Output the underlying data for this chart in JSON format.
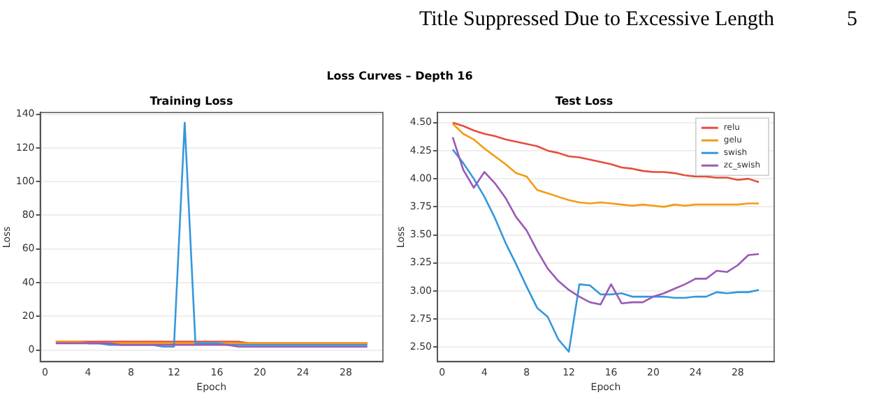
{
  "chart_data": [
    {
      "type": "line",
      "title": "Training Loss",
      "xlabel": "Epoch",
      "ylabel": "Loss",
      "annotations": [
        "Title Suppressed Due to Excessive Length",
        "5",
        "Loss Curves – Depth 16"
      ],
      "x": [
        1,
        2,
        3,
        4,
        5,
        6,
        7,
        8,
        9,
        10,
        11,
        12,
        13,
        14,
        15,
        16,
        17,
        18,
        19,
        20,
        21,
        22,
        23,
        24,
        25,
        26,
        27,
        28,
        29,
        30
      ],
      "series": [
        {
          "color": "#e74c3c",
          "values": [
            5,
            5,
            5,
            5,
            5,
            5,
            5,
            5,
            5,
            5,
            5,
            5,
            5,
            5,
            5,
            5,
            5,
            5,
            4,
            4,
            4,
            4,
            4,
            4,
            4,
            4,
            4,
            4,
            4,
            4
          ]
        },
        {
          "color": "#f39c12",
          "values": [
            5,
            5,
            5,
            4,
            4,
            4,
            4,
            4,
            4,
            4,
            4,
            4,
            4,
            4,
            4,
            4,
            4,
            4,
            4,
            4,
            4,
            4,
            4,
            4,
            4,
            4,
            4,
            4,
            4,
            4
          ]
        },
        {
          "color": "#3498db",
          "values": [
            null,
            null,
            null,
            4,
            4,
            3,
            3,
            3,
            3,
            3,
            2,
            2,
            135,
            4,
            4,
            4,
            3,
            3,
            3,
            3,
            3,
            3,
            3,
            3,
            3,
            3,
            3,
            3,
            3,
            3
          ]
        },
        {
          "color": "#9b59b6",
          "values": [
            4,
            4,
            4,
            4,
            4,
            4,
            3,
            3,
            3,
            3,
            3,
            3,
            3,
            3,
            3,
            3,
            3,
            2,
            2,
            2,
            2,
            2,
            2,
            2,
            2,
            2,
            2,
            2,
            2,
            2
          ]
        }
      ],
      "xlim": [
        -0.45,
        31.45
      ],
      "ylim": [
        -7,
        141
      ],
      "xticks": [
        0,
        4,
        8,
        12,
        16,
        20,
        24,
        28
      ],
      "yticks": [
        0,
        20,
        40,
        60,
        80,
        100,
        120,
        140
      ],
      "grid": "y",
      "legend": false,
      "marker": "none",
      "line_style": "solid"
    },
    {
      "type": "line",
      "title": "Test Loss",
      "xlabel": "Epoch",
      "ylabel": "Loss",
      "x": [
        1,
        2,
        3,
        4,
        5,
        6,
        7,
        8,
        9,
        10,
        11,
        12,
        13,
        14,
        15,
        16,
        17,
        18,
        19,
        20,
        21,
        22,
        23,
        24,
        25,
        26,
        27,
        28,
        29,
        30
      ],
      "series": [
        {
          "name": "relu",
          "color": "#e74c3c",
          "values": [
            4.5,
            4.47,
            4.43,
            4.4,
            4.38,
            4.35,
            4.33,
            4.31,
            4.29,
            4.25,
            4.23,
            4.2,
            4.19,
            4.17,
            4.15,
            4.13,
            4.1,
            4.09,
            4.07,
            4.06,
            4.06,
            4.05,
            4.03,
            4.02,
            4.02,
            4.01,
            4.01,
            3.99,
            4.0,
            3.97
          ]
        },
        {
          "name": "gelu",
          "color": "#f39c12",
          "values": [
            4.49,
            4.4,
            4.35,
            4.27,
            4.2,
            4.13,
            4.05,
            4.02,
            3.9,
            3.87,
            3.84,
            3.81,
            3.79,
            3.78,
            3.79,
            3.78,
            3.77,
            3.76,
            3.77,
            3.76,
            3.75,
            3.77,
            3.76,
            3.77,
            3.77,
            3.77,
            3.77,
            3.77,
            3.78,
            3.78
          ]
        },
        {
          "name": "swish",
          "color": "#3498db",
          "values": [
            4.26,
            4.14,
            4.0,
            3.84,
            3.65,
            3.43,
            3.24,
            3.04,
            2.85,
            2.77,
            2.57,
            2.46,
            3.06,
            3.05,
            2.97,
            2.97,
            2.98,
            2.95,
            2.95,
            2.95,
            2.95,
            2.94,
            2.94,
            2.95,
            2.95,
            2.99,
            2.98,
            2.99,
            2.99,
            3.01
          ]
        },
        {
          "name": "zc_swish",
          "color": "#9b59b6",
          "values": [
            4.37,
            4.08,
            3.92,
            4.06,
            3.96,
            3.83,
            3.66,
            3.54,
            3.36,
            3.2,
            3.09,
            3.01,
            2.95,
            2.9,
            2.88,
            3.06,
            2.89,
            2.9,
            2.9,
            2.95,
            2.98,
            3.02,
            3.06,
            3.11,
            3.11,
            3.18,
            3.17,
            3.23,
            3.32,
            3.33
          ]
        }
      ],
      "xlim": [
        -0.45,
        31.45
      ],
      "ylim": [
        2.37,
        4.59
      ],
      "xticks": [
        0,
        4,
        8,
        12,
        16,
        20,
        24,
        28
      ],
      "yticks": [
        {
          "value": 2.5,
          "label": "2.50"
        },
        {
          "value": 2.75,
          "label": "2.75"
        },
        {
          "value": 3,
          "label": "3.00"
        },
        {
          "value": 3.25,
          "label": "3.25"
        },
        {
          "value": 3.5,
          "label": "3.50"
        },
        {
          "value": 3.75,
          "label": "3.75"
        },
        {
          "value": 4,
          "label": "4.00"
        },
        {
          "value": 4.25,
          "label": "4.25"
        },
        {
          "value": 4.5,
          "label": "4.50"
        }
      ],
      "grid": "y",
      "legend": "top right",
      "marker": "none",
      "line_style": "solid"
    }
  ]
}
